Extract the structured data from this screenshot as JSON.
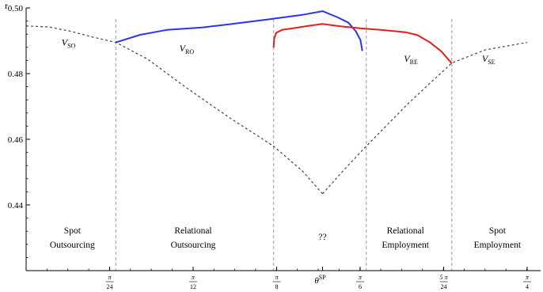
{
  "chart_data": {
    "type": "line",
    "ylabel": "r",
    "xlim": [
      0,
      0.7854
    ],
    "ylim": [
      0.42,
      0.5
    ],
    "x_ticks": [
      {
        "num": "π",
        "den": "24",
        "value": 0.1309
      },
      {
        "num": "π",
        "den": "12",
        "value": 0.2618
      },
      {
        "num": "π",
        "den": "8",
        "value": 0.3927
      },
      {
        "num": "π",
        "den": "6",
        "value": 0.5236
      },
      {
        "num": "5 π",
        "den": "24",
        "value": 0.6545
      },
      {
        "num": "π",
        "den": "4",
        "value": 0.7854
      }
    ],
    "theta_marker": {
      "label": "θ",
      "sup": "SP",
      "value": 0.4647
    },
    "y_ticks": [
      {
        "label": "0.44",
        "value": 0.44
      },
      {
        "label": "0.46",
        "value": 0.46
      },
      {
        "label": "0.48",
        "value": 0.48
      },
      {
        "label": "0.50",
        "value": 0.5
      }
    ],
    "boundaries": [
      0.1407,
      0.3878,
      0.5332,
      0.6672
    ],
    "regions": [
      {
        "line1": "Spot",
        "line2": "Outsourcing",
        "x": 0.0724
      },
      {
        "line1": "Relational",
        "line2": "Outsourcing",
        "x": 0.2618
      },
      {
        "line1": "??",
        "line2": "",
        "x": 0.4647
      },
      {
        "line1": "Relational",
        "line2": "Employment",
        "x": 0.5946
      },
      {
        "line1": "Spot",
        "line2": "Employment",
        "x": 0.7387
      }
    ],
    "series": [
      {
        "name": "V",
        "sub": "SO",
        "label_pos": [
          0.0555,
          0.4885
        ],
        "color": "#444444",
        "style": "dashed",
        "points": [
          [
            0,
            0.4945
          ],
          [
            0.036,
            0.4942
          ],
          [
            0.072,
            0.4928
          ],
          [
            0.1024,
            0.4912
          ],
          [
            0.1407,
            0.4895
          ],
          [
            0.1903,
            0.4844
          ],
          [
            0.2504,
            0.4758
          ],
          [
            0.3193,
            0.4665
          ],
          [
            0.3878,
            0.4579
          ],
          [
            0.4334,
            0.4503
          ],
          [
            0.4647,
            0.4434
          ]
        ]
      },
      {
        "name": "V",
        "sub": "SE",
        "label_pos": [
          0.7145,
          0.4836
        ],
        "color": "#444444",
        "style": "dashed",
        "points": [
          [
            0.4647,
            0.4434
          ],
          [
            0.4969,
            0.4504
          ],
          [
            0.5332,
            0.4579
          ],
          [
            0.5994,
            0.471
          ],
          [
            0.6672,
            0.4832
          ],
          [
            0.7193,
            0.4872
          ],
          [
            0.7854,
            0.4895
          ]
        ]
      },
      {
        "name": "V",
        "sub": "RO",
        "label_pos": [
          0.2403,
          0.4868
        ],
        "color": "#2b35e8",
        "style": "solid",
        "points": [
          [
            0.1407,
            0.4895
          ],
          [
            0.1787,
            0.4918
          ],
          [
            0.2203,
            0.4933
          ],
          [
            0.2734,
            0.494
          ],
          [
            0.323,
            0.4951
          ],
          [
            0.3794,
            0.4965
          ],
          [
            0.4334,
            0.4979
          ],
          [
            0.4647,
            0.499
          ],
          [
            0.4887,
            0.4971
          ],
          [
            0.5052,
            0.4955
          ],
          [
            0.5168,
            0.4929
          ],
          [
            0.5241,
            0.4902
          ],
          [
            0.5271,
            0.4869
          ]
        ]
      },
      {
        "name": "V",
        "sub": "RE",
        "label_pos": [
          0.5922,
          0.4836
        ],
        "color": "#e02020",
        "style": "solid",
        "points": [
          [
            0.3878,
            0.4879
          ],
          [
            0.389,
            0.4907
          ],
          [
            0.392,
            0.4924
          ],
          [
            0.4009,
            0.4933
          ],
          [
            0.4184,
            0.4938
          ],
          [
            0.4418,
            0.4945
          ],
          [
            0.4647,
            0.4951
          ],
          [
            0.4927,
            0.4944
          ],
          [
            0.5235,
            0.4938
          ],
          [
            0.5558,
            0.4933
          ],
          [
            0.5946,
            0.4926
          ],
          [
            0.6134,
            0.4917
          ],
          [
            0.6324,
            0.4896
          ],
          [
            0.6508,
            0.4868
          ],
          [
            0.6672,
            0.4831
          ]
        ]
      }
    ]
  }
}
